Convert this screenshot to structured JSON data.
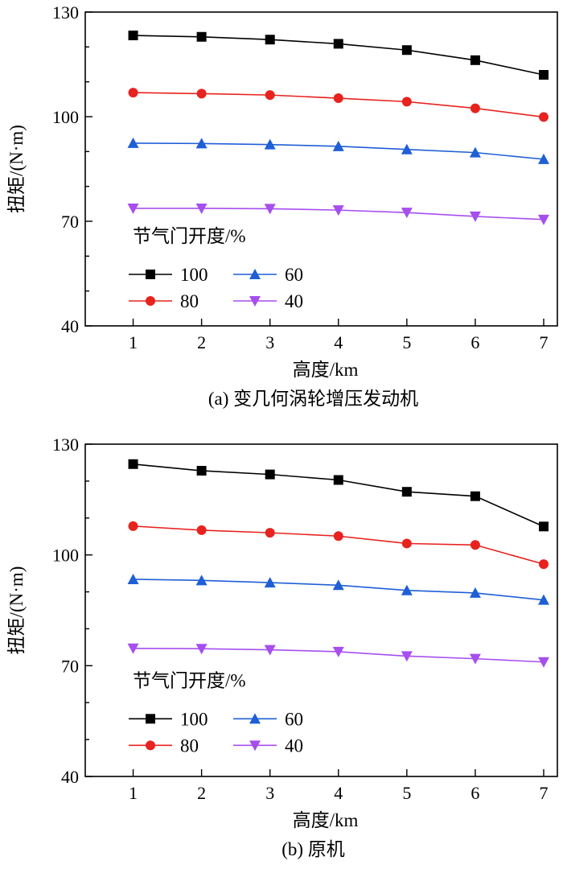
{
  "chart_data": [
    {
      "type": "line",
      "caption": "(a) 变几何涡轮增压发动机",
      "xlabel": "高度/km",
      "ylabel": "扭矩/(N·m)",
      "x": [
        1,
        2,
        3,
        4,
        5,
        6,
        7
      ],
      "xlim": [
        0.3,
        7.2
      ],
      "ylim": [
        40,
        130
      ],
      "xticks": [
        1,
        2,
        3,
        4,
        5,
        6,
        7
      ],
      "yticks": [
        40,
        70,
        100,
        130
      ],
      "legend_title": "节气门开度/%",
      "series": [
        {
          "name": "100",
          "color": "#000000",
          "marker": "square",
          "values": [
            123.3,
            122.9,
            122.1,
            120.9,
            119.1,
            116.2,
            112.0
          ]
        },
        {
          "name": "80",
          "color": "#e8221e",
          "marker": "circle",
          "values": [
            106.9,
            106.6,
            106.2,
            105.3,
            104.3,
            102.4,
            99.9
          ]
        },
        {
          "name": "60",
          "color": "#1f5fd6",
          "marker": "triangle-up",
          "values": [
            92.4,
            92.3,
            92.0,
            91.5,
            90.6,
            89.7,
            87.8
          ]
        },
        {
          "name": "40",
          "color": "#a64ef0",
          "marker": "triangle-down",
          "values": [
            73.7,
            73.7,
            73.6,
            73.2,
            72.5,
            71.4,
            70.5
          ]
        }
      ]
    },
    {
      "type": "line",
      "caption": "(b) 原机",
      "xlabel": "高度/km",
      "ylabel": "扭矩/(N·m)",
      "x": [
        1,
        2,
        3,
        4,
        5,
        6,
        7
      ],
      "xlim": [
        0.3,
        7.2
      ],
      "ylim": [
        40,
        130
      ],
      "xticks": [
        1,
        2,
        3,
        4,
        5,
        6,
        7
      ],
      "yticks": [
        40,
        70,
        100,
        130
      ],
      "legend_title": "节气门开度/%",
      "series": [
        {
          "name": "100",
          "color": "#000000",
          "marker": "square",
          "values": [
            124.6,
            122.8,
            121.8,
            120.3,
            117.1,
            115.9,
            107.7
          ]
        },
        {
          "name": "80",
          "color": "#e8221e",
          "marker": "circle",
          "values": [
            107.8,
            106.7,
            106.0,
            105.1,
            103.1,
            102.7,
            97.5
          ]
        },
        {
          "name": "60",
          "color": "#1f5fd6",
          "marker": "triangle-up",
          "values": [
            93.4,
            93.1,
            92.5,
            91.8,
            90.4,
            89.7,
            87.8
          ]
        },
        {
          "name": "40",
          "color": "#a64ef0",
          "marker": "triangle-down",
          "values": [
            74.7,
            74.6,
            74.3,
            73.8,
            72.6,
            71.9,
            71.0
          ]
        }
      ]
    }
  ]
}
